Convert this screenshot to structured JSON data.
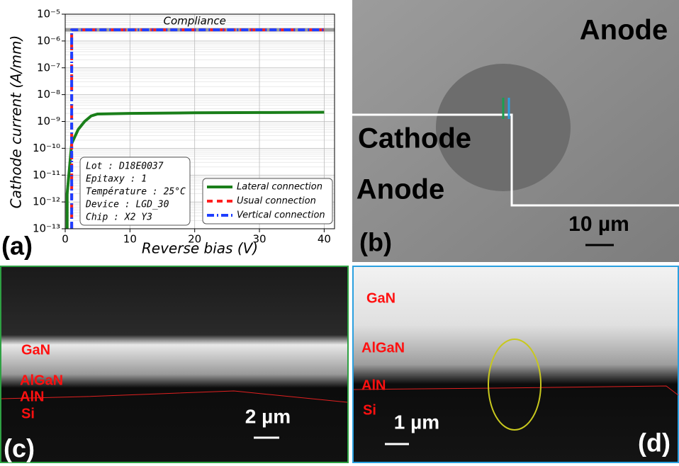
{
  "chart_data": {
    "type": "line",
    "panel_label": "(a)",
    "x_label": "Reverse bias (V)",
    "y_label": "Cathode current (A/mm)",
    "log_y": true,
    "grid": true,
    "legend_position": "lower right",
    "xlim": [
      0,
      41.6
    ],
    "xticks": [
      0,
      10,
      20,
      30,
      40
    ],
    "ylim": [
      1e-13,
      1e-05
    ],
    "yticks": [
      {
        "value": 1e-13,
        "label": "10⁻¹³"
      },
      {
        "value": 1e-12,
        "label": "10⁻¹²"
      },
      {
        "value": 1e-11,
        "label": "10⁻¹¹"
      },
      {
        "value": 1e-10,
        "label": "10⁻¹⁰"
      },
      {
        "value": 1e-09,
        "label": "10⁻⁹"
      },
      {
        "value": 1e-08,
        "label": "10⁻⁸"
      },
      {
        "value": 1e-07,
        "label": "10⁻⁷"
      },
      {
        "value": 1e-06,
        "label": "10⁻⁶"
      },
      {
        "value": 1e-05,
        "label": "10⁻⁵"
      }
    ],
    "reference_line": {
      "value": 2.6e-06,
      "label": "Compliance",
      "color": "#999999"
    },
    "series": [
      {
        "name": "Lateral connection",
        "color": "#1a7f1a",
        "dash": "solid",
        "x": [
          0.3,
          0.3,
          1,
          2,
          3,
          4,
          5,
          10,
          20,
          30,
          40
        ],
        "values": [
          1e-13,
          2e-12,
          1.5e-10,
          5e-10,
          1e-09,
          1.6e-09,
          1.9e-09,
          2e-09,
          2.1e-09,
          2.15e-09,
          2.2e-09
        ]
      },
      {
        "name": "Usual connection",
        "color": "#ff2020",
        "dash": "dashed",
        "x": [
          1,
          1,
          40
        ],
        "values": [
          1e-13,
          2.6e-06,
          2.6e-06
        ]
      },
      {
        "name": "Vertical connection",
        "color": "#1f3fff",
        "dash": "dashdot",
        "x": [
          1,
          1,
          40
        ],
        "values": [
          1e-13,
          2.6e-06,
          2.6e-06
        ]
      }
    ],
    "info_box": [
      "Lot : D18E0037",
      "Epitaxy : 1",
      "Température : 25°C",
      "Device : LGD_30",
      "Chip : X2 Y3"
    ]
  },
  "panels": {
    "b": {
      "label": "(b)",
      "texts": [
        "Anode",
        "Cathode",
        "Anode"
      ],
      "scale": "10 µm"
    },
    "c": {
      "label": "(c)",
      "layers": [
        "GaN",
        "AlGaN",
        "AlN",
        "Si"
      ],
      "scale": "2 µm"
    },
    "d": {
      "label": "(d)",
      "layers": [
        "GaN",
        "AlGaN",
        "AlN",
        "Si"
      ],
      "scale": "1 µm"
    }
  }
}
